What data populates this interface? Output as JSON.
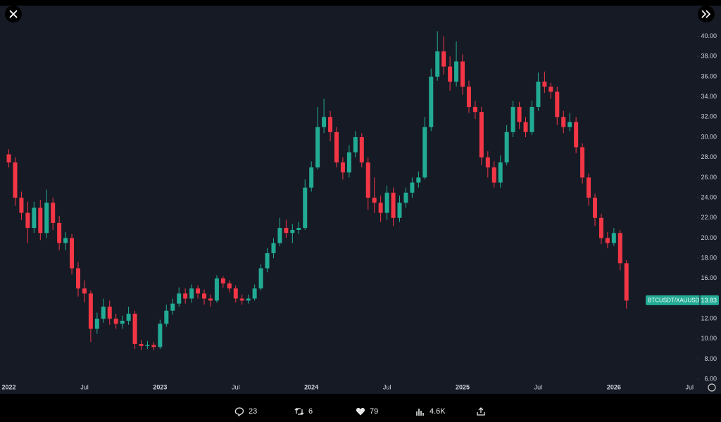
{
  "chart_data": {
    "type": "candlestick",
    "series_name": "BTCUSDT/XAUUSD",
    "last_value": 13.83,
    "up_color": "#22ab94",
    "down_color": "#f23645",
    "xlim": [
      -0.7,
      54.6
    ],
    "xticks": [
      {
        "value": 0,
        "label": "2022"
      },
      {
        "value": 6,
        "label": "Jul"
      },
      {
        "value": 12,
        "label": "2023"
      },
      {
        "value": 18,
        "label": "Jul"
      },
      {
        "value": 24,
        "label": "2024"
      },
      {
        "value": 30,
        "label": "Jul"
      },
      {
        "value": 36,
        "label": "2025"
      },
      {
        "value": 42,
        "label": "Jul"
      },
      {
        "value": 48,
        "label": "2026"
      },
      {
        "value": 54,
        "label": "Jul"
      }
    ],
    "ylim": [
      4.9,
      42.9
    ],
    "yticks": [
      {
        "value": 6,
        "label": "6.00"
      },
      {
        "value": 8,
        "label": "8.00"
      },
      {
        "value": 10,
        "label": "10.00"
      },
      {
        "value": 12,
        "label": "12.00"
      },
      {
        "value": 14,
        "label": "14.00"
      },
      {
        "value": 16,
        "label": "16.00"
      },
      {
        "value": 18,
        "label": "18.00"
      },
      {
        "value": 20,
        "label": "20.00"
      },
      {
        "value": 22,
        "label": "22.00"
      },
      {
        "value": 24,
        "label": "24.00"
      },
      {
        "value": 26,
        "label": "26.00"
      },
      {
        "value": 28,
        "label": "28.00"
      },
      {
        "value": 30,
        "label": "30.00"
      },
      {
        "value": 32,
        "label": "32.00"
      },
      {
        "value": 34,
        "label": "34.00"
      },
      {
        "value": 36,
        "label": "36.00"
      },
      {
        "value": 38,
        "label": "38.00"
      },
      {
        "value": 40,
        "label": "40.00"
      }
    ],
    "x": [
      0,
      0.5,
      1,
      1.5,
      2,
      2.5,
      3,
      3.5,
      4,
      4.5,
      5,
      5.5,
      6,
      6.5,
      7,
      7.5,
      8,
      8.5,
      9,
      9.5,
      10,
      10.5,
      11,
      11.5,
      12,
      12.5,
      13,
      13.5,
      14,
      14.5,
      15,
      15.5,
      16,
      16.5,
      17,
      17.5,
      18,
      18.5,
      19,
      19.5,
      20,
      20.5,
      21,
      21.5,
      22,
      22.5,
      23,
      23.5,
      24,
      24.5,
      25,
      25.5,
      26,
      26.5,
      27,
      27.5,
      28,
      28.5,
      29,
      29.5,
      30,
      30.5,
      31,
      31.5,
      32,
      32.5,
      33,
      33.5,
      34,
      34.5,
      35,
      35.5,
      36,
      36.5,
      37,
      37.5,
      38,
      38.5,
      39,
      39.5,
      40,
      40.5,
      41,
      41.5,
      42,
      42.5,
      43,
      43.5,
      44,
      44.5,
      45,
      45.5,
      46,
      46.5,
      47,
      47.5,
      48,
      48.5,
      49
    ],
    "open": [
      28.3,
      27.5,
      24.0,
      22.5,
      21.0,
      23.0,
      20.5,
      23.5,
      21.5,
      19.5,
      20.0,
      17.0,
      15.0,
      14.5,
      11.0,
      12.0,
      13.2,
      12.0,
      11.5,
      11.8,
      12.5,
      9.5,
      9.3,
      9.4,
      9.2,
      11.5,
      12.8,
      13.5,
      14.5,
      14.0,
      15.0,
      14.5,
      14.0,
      13.8,
      16.0,
      15.5,
      15.0,
      14.0,
      13.8,
      14.0,
      15.0,
      17.0,
      18.5,
      19.5,
      21.0,
      20.5,
      20.8,
      21.0,
      25.0,
      27.0,
      31.0,
      32.0,
      30.5,
      27.5,
      26.5,
      28.5,
      30.0,
      27.5,
      24.0,
      23.5,
      22.5,
      24.5,
      22.0,
      23.5,
      24.5,
      25.5,
      26.0,
      31.0,
      36.0,
      38.5,
      37.0,
      35.5,
      37.5,
      35.0,
      33.0,
      32.5,
      28.0,
      27.0,
      25.5,
      27.5,
      30.5,
      33.0,
      31.5,
      30.5,
      33.0,
      35.5,
      35.0,
      34.5,
      32.0,
      31.0,
      31.5,
      29.0,
      26.0,
      24.0,
      22.0,
      20.0,
      19.5,
      20.5,
      17.5
    ],
    "high": [
      28.8,
      28.0,
      24.6,
      23.6,
      23.6,
      23.8,
      24.8,
      24.0,
      22.2,
      20.6,
      20.4,
      17.6,
      15.8,
      14.8,
      12.6,
      14.0,
      13.8,
      12.5,
      12.3,
      13.2,
      12.8,
      9.9,
      9.8,
      9.7,
      11.9,
      13.4,
      14.0,
      15.1,
      15.0,
      15.4,
      15.3,
      14.9,
      14.4,
      16.3,
      16.2,
      15.8,
      15.3,
      14.4,
      14.4,
      15.4,
      17.4,
      19.0,
      20.0,
      22.0,
      21.8,
      21.4,
      21.6,
      25.8,
      27.6,
      33.0,
      33.8,
      32.6,
      31.0,
      28.0,
      29.2,
      30.6,
      30.4,
      28.0,
      26.0,
      24.2,
      25.2,
      25.0,
      24.2,
      25.0,
      26.0,
      26.6,
      32.0,
      36.8,
      40.5,
      40.0,
      38.0,
      39.5,
      38.2,
      35.6,
      33.6,
      33.0,
      28.6,
      27.6,
      28.2,
      31.2,
      33.6,
      33.5,
      32.0,
      33.6,
      36.4,
      36.5,
      35.4,
      35.0,
      32.6,
      32.4,
      32.0,
      29.4,
      26.4,
      24.4,
      22.4,
      20.6,
      21.0,
      20.8,
      17.8
    ],
    "low": [
      27.0,
      23.2,
      21.8,
      19.5,
      20.5,
      19.8,
      20.0,
      20.8,
      18.8,
      18.8,
      16.4,
      14.2,
      13.6,
      9.7,
      10.5,
      11.6,
      11.4,
      11.0,
      11.0,
      11.4,
      9.0,
      8.9,
      9.0,
      8.9,
      9.0,
      11.2,
      12.4,
      13.2,
      13.5,
      13.6,
      14.0,
      13.4,
      13.2,
      13.6,
      15.1,
      14.6,
      13.6,
      13.4,
      13.5,
      13.8,
      14.8,
      16.6,
      18.0,
      19.2,
      20.0,
      19.5,
      20.4,
      20.8,
      24.6,
      26.8,
      30.4,
      29.6,
      27.0,
      25.8,
      26.0,
      28.0,
      27.0,
      22.8,
      22.5,
      21.6,
      21.8,
      21.2,
      21.6,
      23.0,
      24.0,
      25.0,
      25.8,
      30.6,
      35.6,
      36.2,
      34.6,
      35.0,
      34.2,
      32.4,
      31.8,
      27.2,
      26.0,
      25.0,
      25.0,
      27.2,
      30.0,
      30.8,
      30.0,
      30.2,
      32.6,
      34.4,
      33.8,
      31.2,
      30.4,
      30.6,
      28.4,
      25.4,
      23.2,
      21.2,
      19.4,
      19.0,
      19.2,
      16.8,
      13.0
    ],
    "close": [
      27.5,
      24.0,
      22.5,
      21.0,
      23.0,
      20.5,
      23.5,
      21.5,
      19.5,
      20.0,
      17.0,
      15.0,
      14.5,
      11.0,
      12.0,
      13.2,
      12.0,
      11.5,
      11.8,
      12.5,
      9.5,
      9.3,
      9.4,
      9.2,
      11.5,
      12.8,
      13.5,
      14.5,
      14.0,
      15.0,
      14.5,
      14.0,
      13.8,
      16.0,
      15.5,
      15.0,
      14.0,
      13.8,
      14.0,
      15.0,
      17.0,
      18.5,
      19.5,
      21.0,
      20.5,
      20.8,
      21.0,
      25.0,
      27.0,
      31.0,
      32.0,
      30.5,
      27.5,
      26.5,
      28.5,
      30.0,
      27.5,
      24.0,
      23.5,
      22.5,
      24.5,
      22.0,
      23.5,
      24.5,
      25.5,
      26.0,
      31.0,
      36.0,
      38.5,
      37.0,
      35.5,
      37.5,
      35.0,
      33.0,
      32.5,
      28.0,
      27.0,
      25.5,
      27.5,
      30.5,
      33.0,
      31.5,
      30.5,
      33.0,
      35.5,
      35.0,
      34.5,
      32.0,
      31.0,
      31.5,
      29.0,
      26.0,
      24.0,
      22.0,
      20.0,
      19.5,
      20.5,
      17.5,
      13.8
    ]
  },
  "post_stats": {
    "replies": "23",
    "reposts": "6",
    "likes": "79",
    "views": "4.6K"
  }
}
